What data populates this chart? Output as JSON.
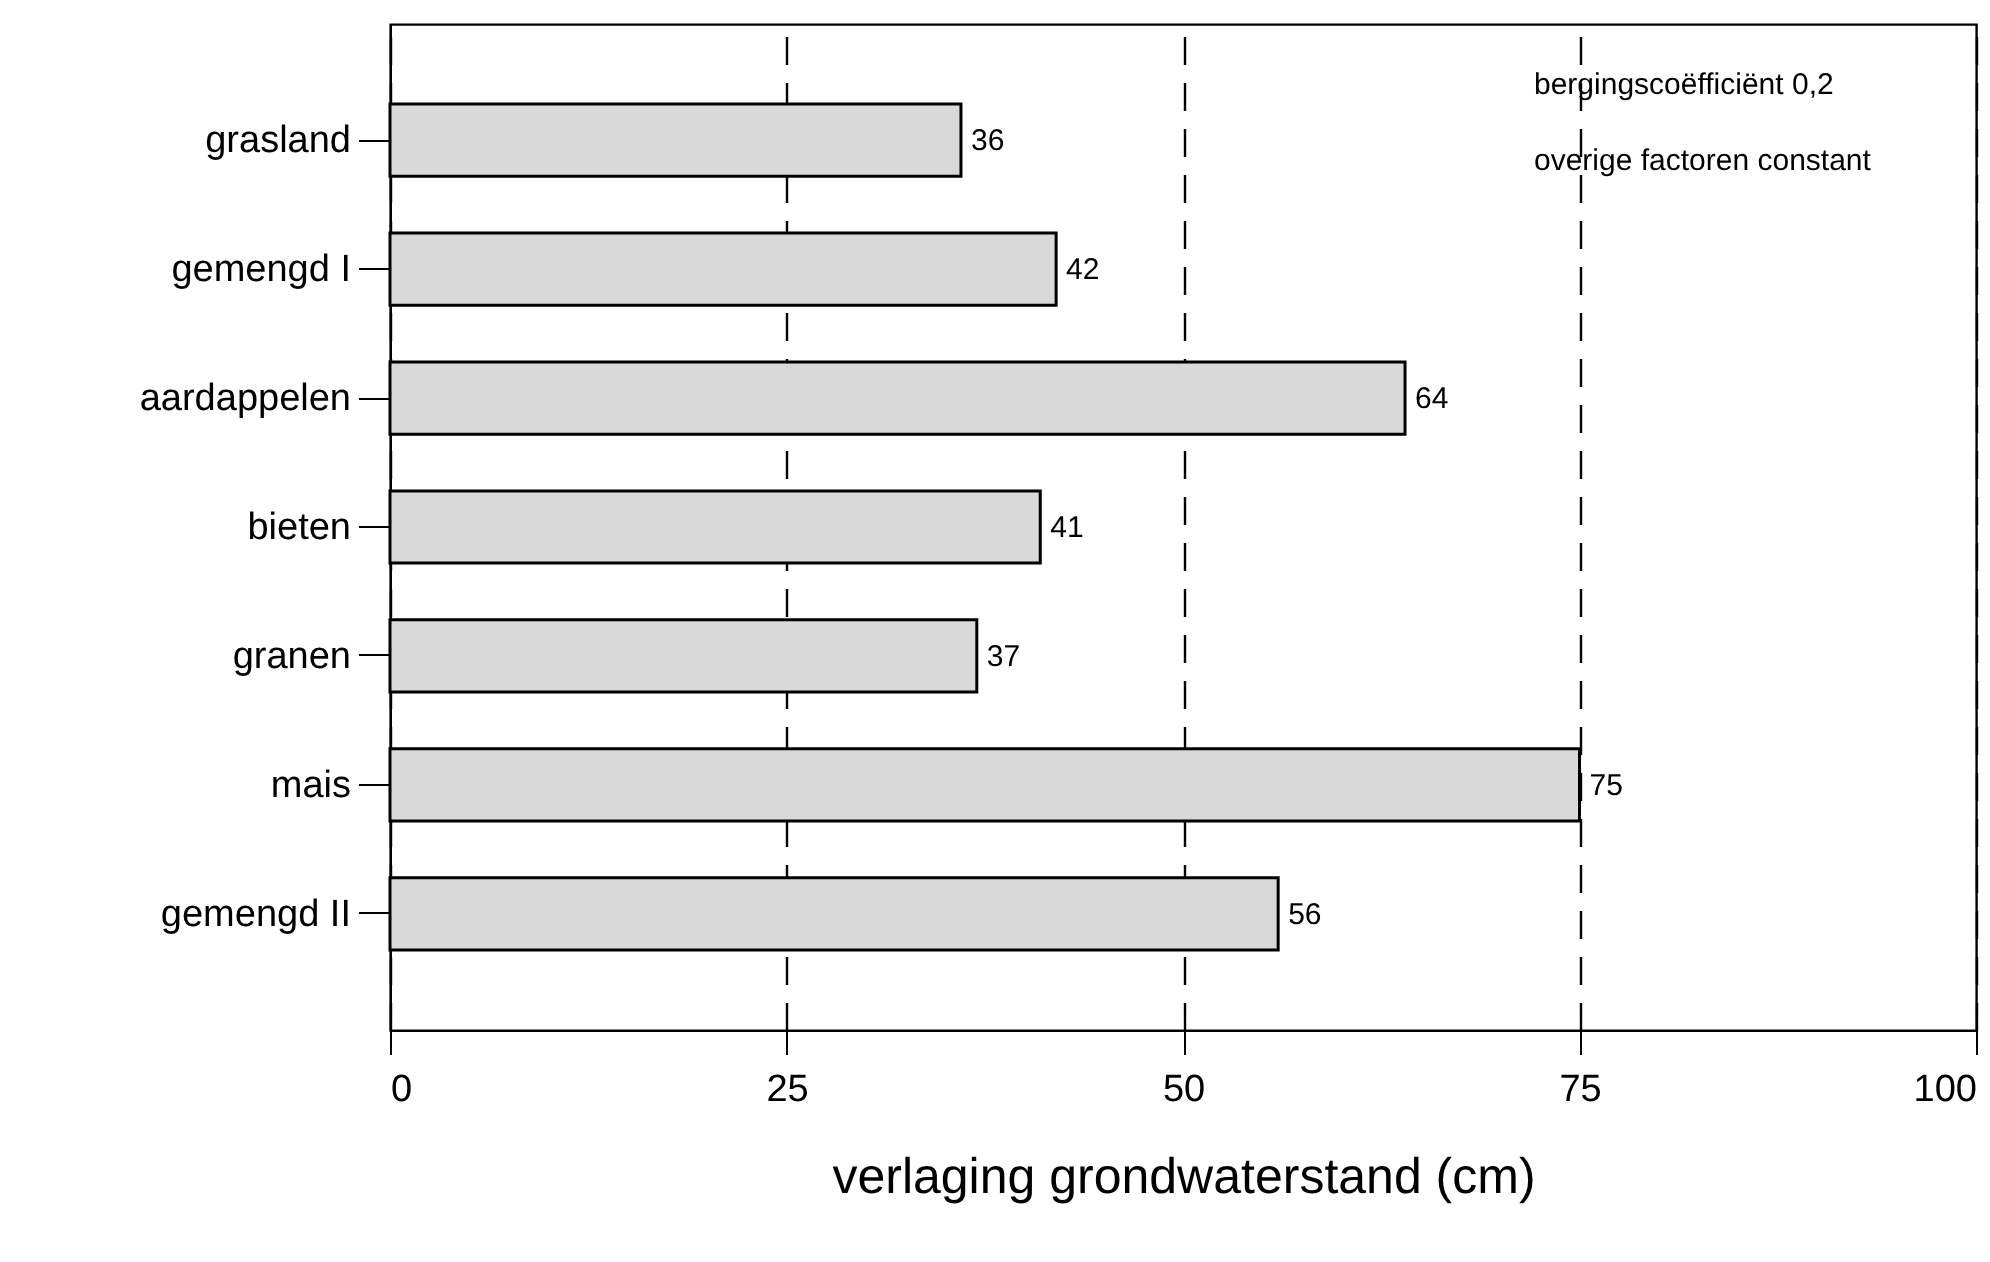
{
  "chart_data": {
    "type": "bar",
    "orientation": "horizontal",
    "categories": [
      "grasland",
      "gemengd I",
      "aardappelen",
      "bieten",
      "granen",
      "mais",
      "gemengd II"
    ],
    "values": [
      36,
      42,
      64,
      41,
      37,
      75,
      56
    ],
    "color": "#d9d9d9",
    "xlim": [
      0,
      100
    ],
    "xticks": [
      0,
      25,
      50,
      75,
      100
    ],
    "xlabel": "verlaging grondwaterstand (cm)",
    "data_labels": true,
    "grid": "x",
    "annotations": [
      "bergingscoëfficiënt 0,2",
      "overige factoren constant"
    ]
  }
}
